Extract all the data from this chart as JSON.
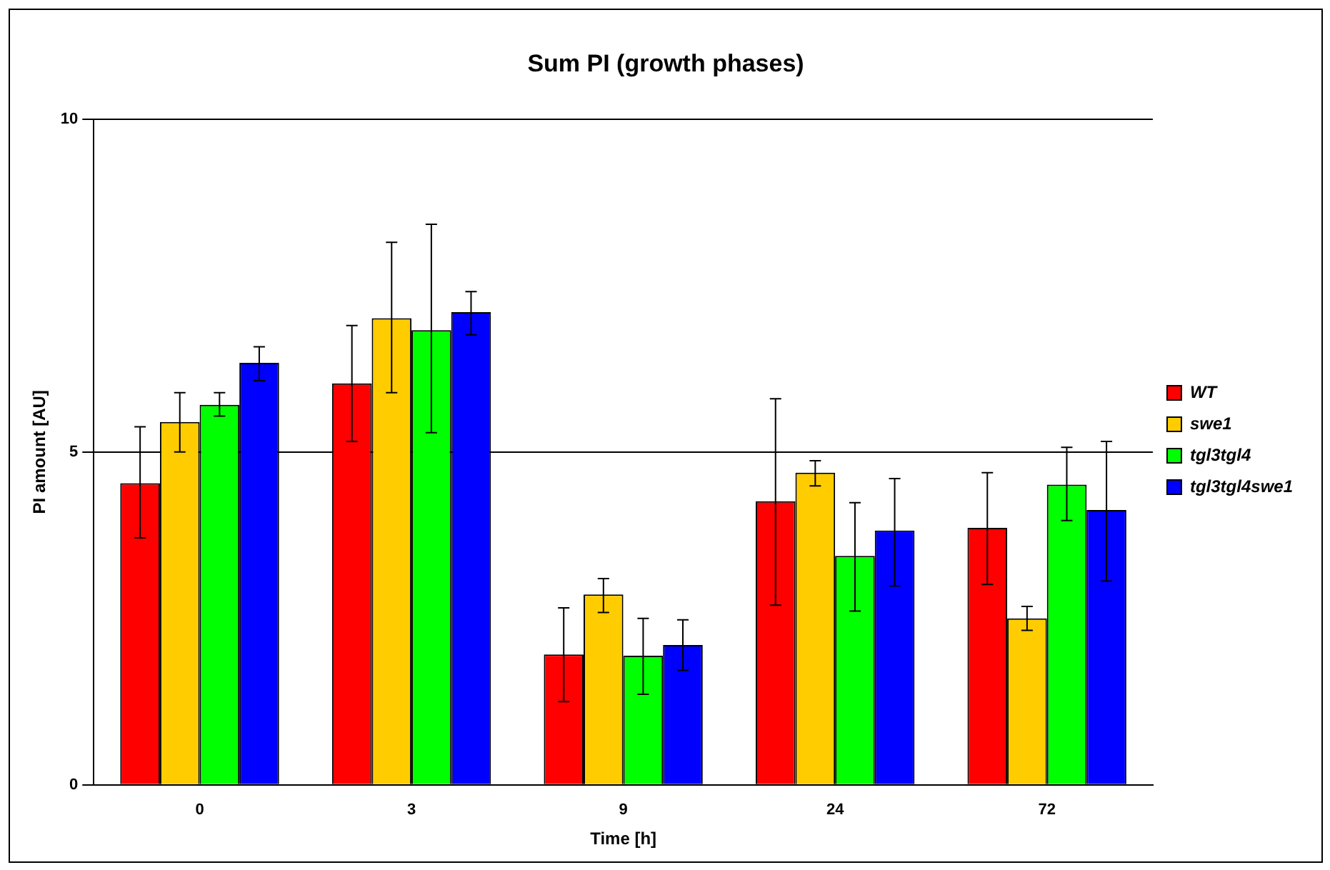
{
  "chart_data": {
    "type": "bar",
    "title": "Sum PI (growth phases)",
    "xlabel": "Time [h]",
    "ylabel": "PI amount [AU]",
    "categories": [
      "0",
      "3",
      "9",
      "24",
      "72"
    ],
    "series": [
      {
        "name": "WT",
        "color": "#ff0000",
        "values": [
          4.53,
          6.03,
          1.96,
          4.26,
          3.86
        ],
        "errors": [
          [
            3.71,
            5.38
          ],
          [
            5.16,
            6.9
          ],
          [
            1.25,
            2.66
          ],
          [
            2.7,
            5.8
          ],
          [
            3.01,
            4.69
          ]
        ]
      },
      {
        "name": "swe1",
        "color": "#ffcc00",
        "values": [
          5.45,
          7.01,
          2.86,
          4.69,
          2.5
        ],
        "errors": [
          [
            5.0,
            5.89
          ],
          [
            5.89,
            8.15
          ],
          [
            2.59,
            3.1
          ],
          [
            4.49,
            4.87
          ],
          [
            2.32,
            2.68
          ]
        ]
      },
      {
        "name": "tgl3tgl4",
        "color": "#00ff00",
        "values": [
          5.71,
          6.83,
          1.94,
          3.44,
          4.51
        ],
        "errors": [
          [
            5.54,
            5.89
          ],
          [
            5.29,
            8.42
          ],
          [
            1.36,
            2.5
          ],
          [
            2.61,
            4.24
          ],
          [
            3.97,
            5.07
          ]
        ]
      },
      {
        "name": "tgl3tgl4swe1",
        "color": "#0000ff",
        "values": [
          6.34,
          7.1,
          2.1,
          3.82,
          4.13
        ],
        "errors": [
          [
            6.07,
            6.58
          ],
          [
            6.76,
            7.41
          ],
          [
            1.72,
            2.48
          ],
          [
            2.99,
            4.6
          ],
          [
            3.06,
            5.16
          ]
        ]
      }
    ],
    "ylim": [
      0,
      10
    ],
    "yticks": [
      0,
      5,
      10
    ],
    "grid": "y",
    "legend": "right"
  }
}
